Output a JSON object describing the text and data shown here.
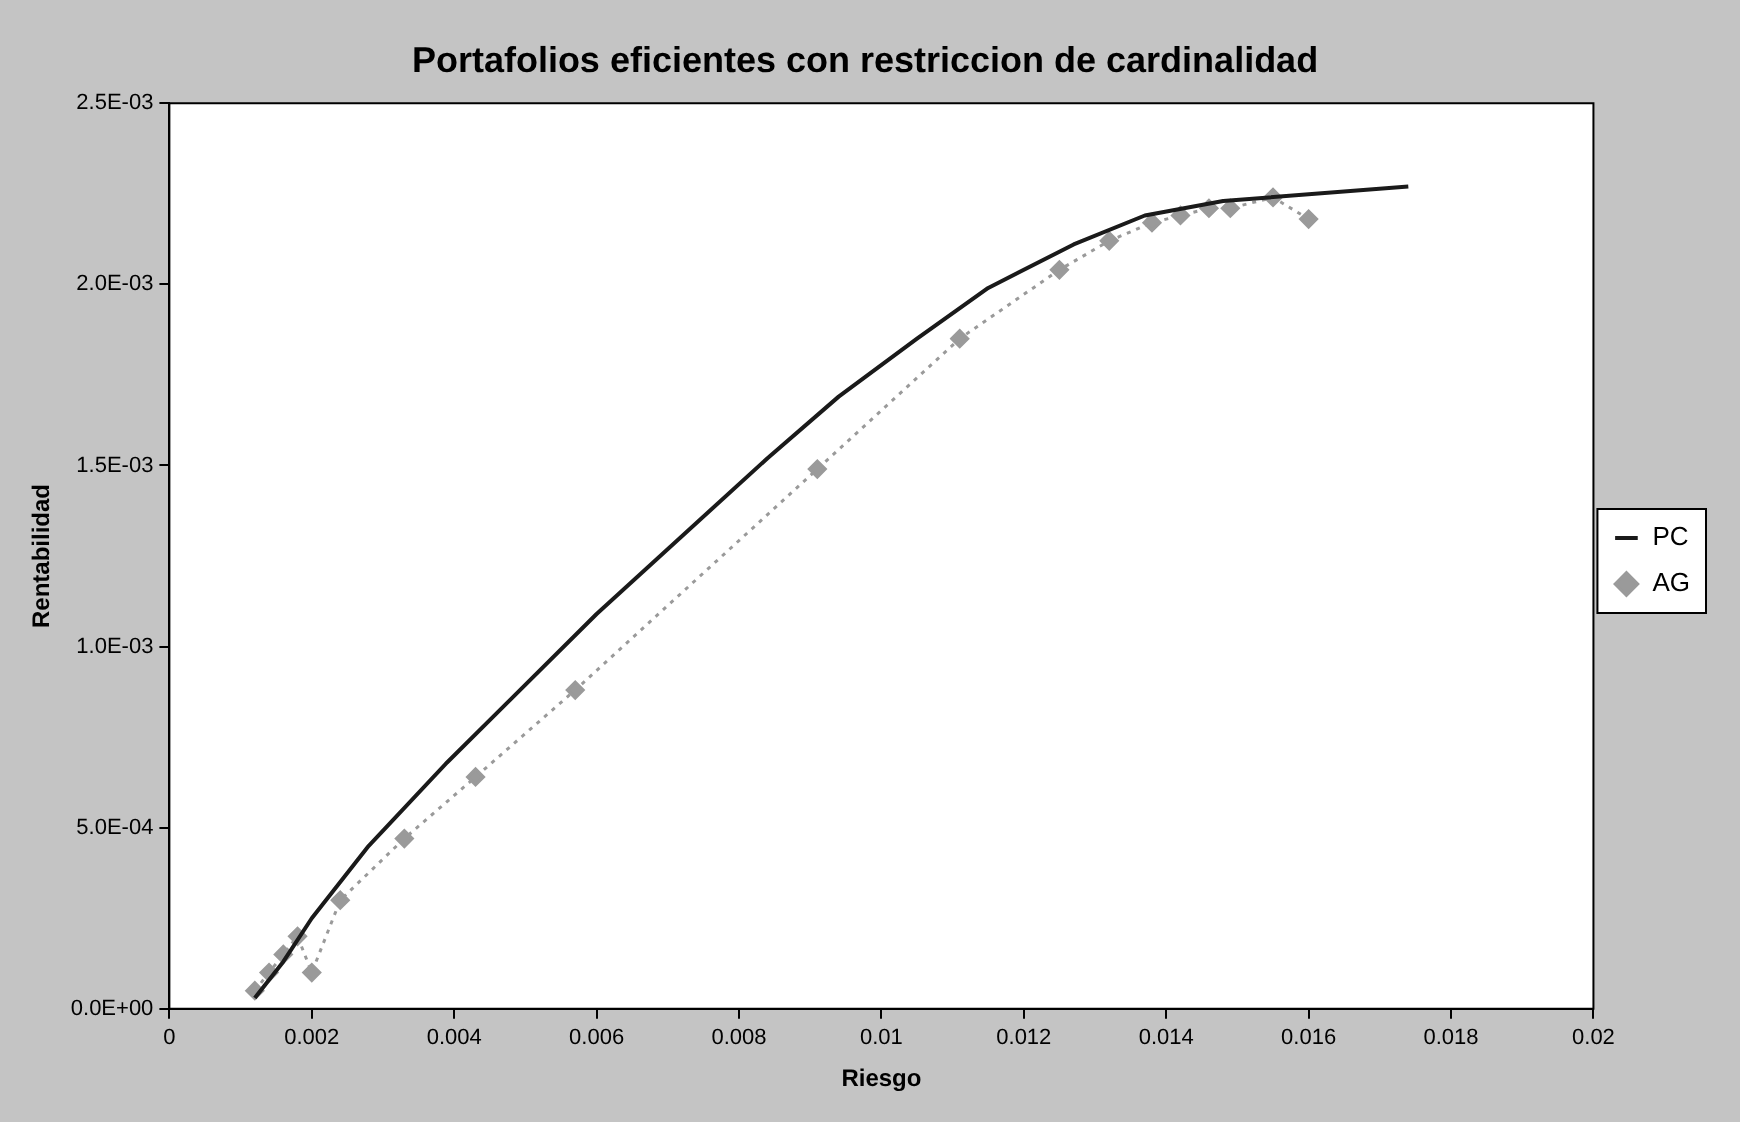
{
  "chart_data": {
    "type": "line",
    "title": "Portafolios eficientes con restriccion de cardinalidad",
    "xlabel": "Riesgo",
    "ylabel": "Rentabilidad",
    "xlim": [
      0,
      0.02
    ],
    "xticks": [
      0,
      0.002,
      0.004,
      0.006,
      0.008,
      0.01,
      0.012,
      0.014,
      0.016,
      0.018,
      0.02
    ],
    "ylim": [
      0,
      0.0025
    ],
    "yticks": [
      {
        "value": 0,
        "label": "0.0E+00"
      },
      {
        "value": 0.0005,
        "label": "5.0E-04"
      },
      {
        "value": 0.001,
        "label": "1.0E-03"
      },
      {
        "value": 0.0015,
        "label": "1.5E-03"
      },
      {
        "value": 0.002,
        "label": "2.0E-03"
      },
      {
        "value": 0.0025,
        "label": "2.5E-03"
      }
    ],
    "legend": "right",
    "grid": false,
    "series": [
      {
        "name": "PC",
        "color": "#1a1a1a",
        "line_style": "solid",
        "marker": "none",
        "x": [
          0.0012,
          0.0016,
          0.002,
          0.0028,
          0.0039,
          0.006,
          0.0084,
          0.0094,
          0.0105,
          0.0115,
          0.0127,
          0.0137,
          0.0148,
          0.0174
        ],
        "values": [
          3e-05,
          0.00013,
          0.00025,
          0.00045,
          0.00068,
          0.00109,
          0.00152,
          0.00169,
          0.00185,
          0.00199,
          0.00211,
          0.00219,
          0.00223,
          0.00227
        ]
      },
      {
        "name": "AG",
        "color": "#9a9a9a",
        "line_style": "dotted",
        "marker": "diamond",
        "x": [
          0.0012,
          0.0014,
          0.0016,
          0.0018,
          0.002,
          0.0024,
          0.0033,
          0.0043,
          0.0057,
          0.0091,
          0.0111,
          0.0125,
          0.0132,
          0.0138,
          0.0142,
          0.0146,
          0.0149,
          0.0155,
          0.016
        ],
        "values": [
          5e-05,
          0.0001,
          0.00015,
          0.0002,
          0.0001,
          0.0003,
          0.00047,
          0.00064,
          0.00088,
          0.00149,
          0.00185,
          0.00204,
          0.00212,
          0.00217,
          0.00219,
          0.00221,
          0.00221,
          0.00224,
          0.00218
        ]
      }
    ]
  }
}
